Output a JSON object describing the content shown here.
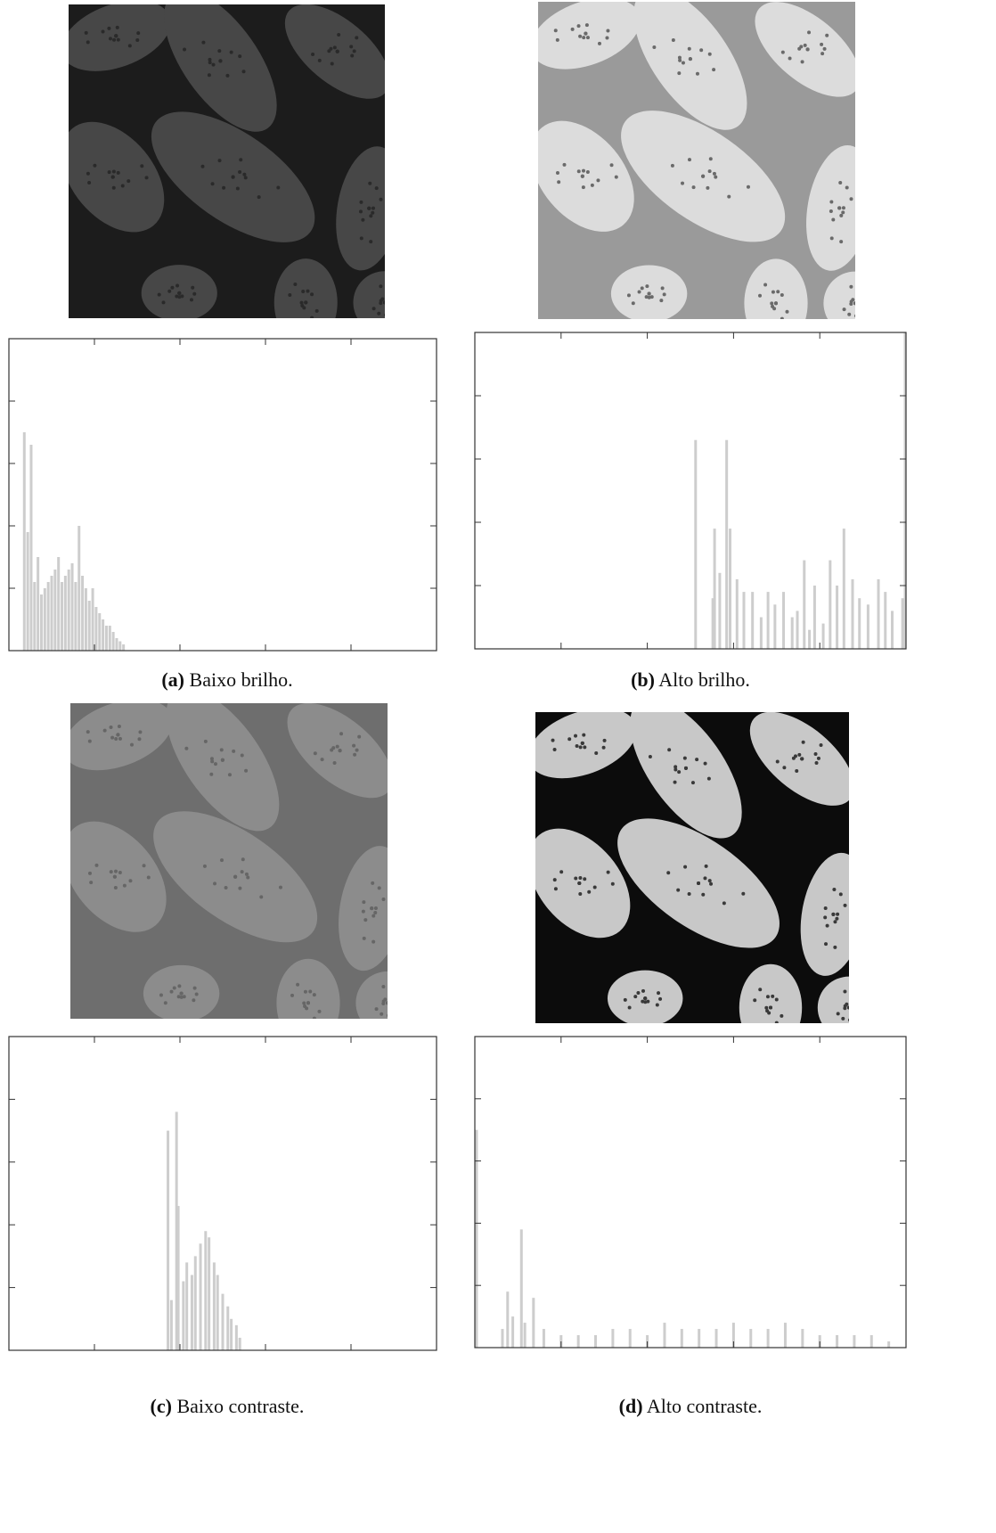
{
  "figures": [
    {
      "label": "(a)",
      "caption": "Baixo brilho.",
      "histogram": {
        "type": "bar",
        "xlim": [
          0,
          250
        ],
        "xticks": [
          50,
          100,
          150,
          200
        ],
        "ylim": [
          0,
          5
        ],
        "yticks": [
          1,
          2,
          3,
          4
        ],
        "color": "#cdcdcd",
        "x": [
          9,
          11,
          13,
          15,
          17,
          19,
          21,
          23,
          25,
          27,
          29,
          31,
          33,
          35,
          37,
          39,
          41,
          43,
          45,
          47,
          49,
          51,
          53,
          55,
          57,
          59,
          61,
          63,
          65,
          67
        ],
        "values": [
          3.5,
          1.9,
          3.3,
          1.1,
          1.5,
          0.9,
          1.0,
          1.1,
          1.2,
          1.3,
          1.5,
          1.1,
          1.2,
          1.3,
          1.4,
          1.1,
          2.0,
          1.2,
          1.0,
          0.8,
          1.0,
          0.7,
          0.6,
          0.5,
          0.4,
          0.4,
          0.3,
          0.2,
          0.15,
          0.1
        ]
      }
    },
    {
      "label": "(b)",
      "caption": "Alto brilho.",
      "histogram": {
        "type": "bar",
        "xlim": [
          0,
          250
        ],
        "xticks": [
          50,
          100,
          150,
          200
        ],
        "ylim": [
          0,
          5
        ],
        "yticks": [
          1,
          2,
          3,
          4
        ],
        "color": "#cdcdcd",
        "x": [
          128,
          138,
          139,
          142,
          146,
          148,
          152,
          156,
          161,
          166,
          170,
          174,
          179,
          184,
          187,
          191,
          194,
          197,
          202,
          206,
          210,
          214,
          219,
          223,
          228,
          234,
          238,
          242,
          248,
          249.5
        ],
        "values": [
          3.3,
          0.8,
          1.9,
          1.2,
          3.3,
          1.9,
          1.1,
          0.9,
          0.9,
          0.5,
          0.9,
          0.7,
          0.9,
          0.5,
          0.6,
          1.4,
          0.3,
          1.0,
          0.4,
          1.4,
          1.0,
          1.9,
          1.1,
          0.8,
          0.7,
          1.1,
          0.9,
          0.6,
          0.8,
          5
        ]
      }
    },
    {
      "label": "(c)",
      "caption": "Baixo contraste.",
      "histogram": {
        "type": "bar",
        "xlim": [
          0,
          250
        ],
        "xticks": [
          50,
          100,
          150,
          200
        ],
        "ylim": [
          0,
          5
        ],
        "yticks": [
          1,
          2,
          3,
          4
        ],
        "color": "#cdcdcd",
        "x": [
          93,
          95,
          98,
          99,
          102,
          104,
          107,
          109,
          112,
          115,
          117,
          120,
          122,
          125,
          128,
          130,
          133,
          135
        ],
        "values": [
          3.5,
          0.8,
          3.8,
          2.3,
          1.1,
          1.4,
          1.2,
          1.5,
          1.7,
          1.9,
          1.8,
          1.4,
          1.2,
          0.9,
          0.7,
          0.5,
          0.4,
          0.2
        ]
      }
    },
    {
      "label": "(d)",
      "caption": "Alto contraste.",
      "histogram": {
        "type": "bar",
        "xlim": [
          0,
          250
        ],
        "xticks": [
          50,
          100,
          150,
          200
        ],
        "ylim": [
          0,
          5
        ],
        "yticks": [
          1,
          2,
          3,
          4
        ],
        "color": "#cdcdcd",
        "x": [
          1,
          16,
          19,
          22,
          27,
          29,
          34,
          40,
          50,
          60,
          70,
          80,
          90,
          100,
          110,
          120,
          130,
          140,
          150,
          160,
          170,
          180,
          190,
          200,
          210,
          220,
          230,
          240
        ],
        "values": [
          3.5,
          0.3,
          0.9,
          0.5,
          1.9,
          0.4,
          0.8,
          0.3,
          0.2,
          0.2,
          0.2,
          0.3,
          0.3,
          0.2,
          0.4,
          0.3,
          0.3,
          0.3,
          0.4,
          0.3,
          0.3,
          0.4,
          0.3,
          0.2,
          0.2,
          0.2,
          0.2,
          0.1
        ]
      }
    }
  ]
}
